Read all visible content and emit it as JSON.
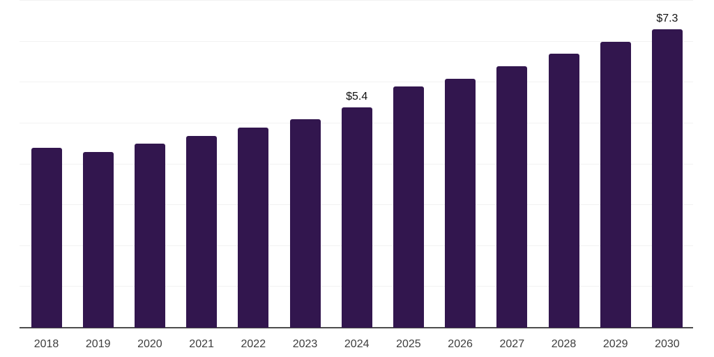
{
  "chart_data": {
    "type": "bar",
    "title": "",
    "xlabel": "",
    "ylabel": "",
    "categories": [
      "2018",
      "2019",
      "2020",
      "2021",
      "2022",
      "2023",
      "2024",
      "2025",
      "2026",
      "2027",
      "2028",
      "2029",
      "2030"
    ],
    "values": [
      4.4,
      4.3,
      4.5,
      4.7,
      4.9,
      5.1,
      5.4,
      5.9,
      6.1,
      6.4,
      6.7,
      7.0,
      7.3
    ],
    "data_labels": [
      "",
      "",
      "",
      "",
      "",
      "",
      "$5.4",
      "",
      "",
      "",
      "",
      "",
      "$7.3"
    ],
    "currency_prefix": "$",
    "ylim": [
      0,
      8
    ],
    "gridline_values": [
      1,
      2,
      3,
      4,
      5,
      6,
      7,
      8
    ],
    "grid": "horizontal",
    "legend_position": "none",
    "colors": {
      "bar": "#32164e",
      "gridline": "#f2f2f2",
      "axis": "#4d4d4d",
      "tick_label": "#3d3d3d",
      "data_label": "#111111",
      "background": "#ffffff"
    }
  }
}
